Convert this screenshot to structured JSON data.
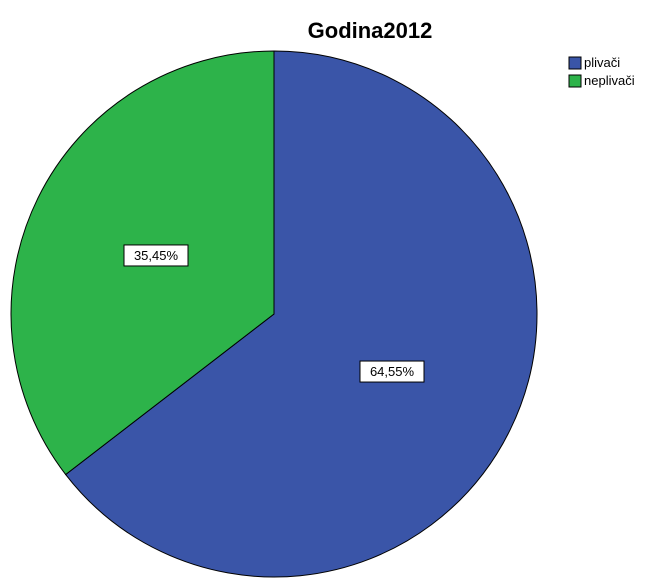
{
  "chart_data": {
    "type": "pie",
    "title": "Godina2012",
    "legend_position": "top-right",
    "slices": [
      {
        "name": "plivači",
        "value": 64.55,
        "label": "64,55%",
        "color": "#3A55A8"
      },
      {
        "name": "neplivači",
        "value": 35.45,
        "label": "35,45%",
        "color": "#2DB34A"
      }
    ]
  }
}
